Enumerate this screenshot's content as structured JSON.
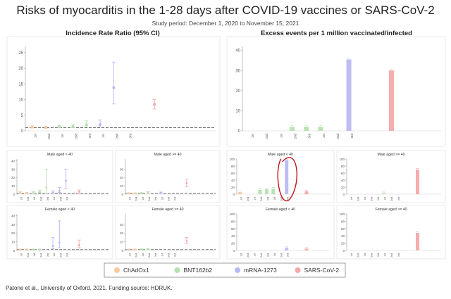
{
  "title": "Risks of myocarditis in the 1-28 days after COVID-19 vaccines or SARS-CoV-2",
  "subtitle": "Study period: December 1, 2020 to November 15, 2021",
  "caption": "Patone et al., University of Oxford, 2021. Funding source: HDRUK.",
  "colors": {
    "ChAdOx1": "#f8c9a0",
    "BNT162b2": "#b7e0b0",
    "mRNA-1273": "#b9b9f2",
    "SARS-CoV-2": "#f4a9a9",
    "annotation": "#c0141c"
  },
  "legend": [
    "ChAdOx1",
    "BNT162b2",
    "mRNA-1273",
    "SARS-CoV-2"
  ],
  "chart_data": [
    {
      "type": "scatter",
      "title": "Incidence Rate Ratio (95% CI)",
      "reference_line": 1,
      "ylim": [
        0,
        27
      ],
      "yticks": [
        0,
        5,
        10,
        15,
        20,
        25
      ],
      "categories": [
        "1st",
        "2nd",
        "1st",
        "2nd",
        "3rd",
        "1st",
        "2nd",
        "3rd",
        "",
        "",
        "",
        "",
        "",
        ""
      ],
      "series": [
        {
          "name": "ChAdOx1",
          "x": [
            0,
            1
          ],
          "y": [
            1.2,
            1.1
          ],
          "lo": [
            0.9,
            0.8
          ],
          "hi": [
            1.6,
            1.4
          ]
        },
        {
          "name": "BNT162b2",
          "x": [
            2,
            3,
            4
          ],
          "y": [
            1.3,
            1.4,
            1.9
          ],
          "lo": [
            1.0,
            1.0,
            1.2
          ],
          "hi": [
            1.7,
            2.0,
            3.2
          ]
        },
        {
          "name": "mRNA-1273",
          "x": [
            5,
            6
          ],
          "y": [
            2.0,
            13.8
          ],
          "lo": [
            1.2,
            8.6
          ],
          "hi": [
            3.5,
            22.0
          ]
        },
        {
          "name": "SARS-CoV-2",
          "x": [
            9
          ],
          "y": [
            8.5
          ],
          "lo": [
            7.0
          ],
          "hi": [
            10.0
          ]
        }
      ]
    },
    {
      "type": "bar",
      "title": "Excess events per 1 million vaccinated/infected",
      "ylim": [
        0,
        42
      ],
      "yticks": [
        0,
        10,
        20,
        30,
        40
      ],
      "categories": [
        "1st",
        "2nd",
        "1st",
        "2nd",
        "3rd",
        "1st",
        "2nd",
        "3rd",
        "",
        "",
        "",
        "",
        "",
        ""
      ],
      "series": [
        {
          "name": "BNT162b2",
          "x": [
            3,
            4,
            5
          ],
          "values": [
            2,
            2,
            2
          ]
        },
        {
          "name": "mRNA-1273",
          "x": [
            7
          ],
          "values": [
            35.5
          ]
        },
        {
          "name": "SARS-CoV-2",
          "x": [
            10
          ],
          "values": [
            30
          ]
        }
      ]
    },
    {
      "type": "scatter",
      "title": "Male aged < 40",
      "ylim": [
        0,
        42
      ],
      "yticks": [
        "0",
        "10",
        "20",
        "30",
        "40"
      ],
      "series": [
        {
          "name": "ChAdOx1",
          "x": [
            0,
            1
          ],
          "y": [
            2,
            1.5
          ],
          "lo": [
            1,
            1
          ],
          "hi": [
            3,
            2
          ]
        },
        {
          "name": "BNT162b2",
          "x": [
            2,
            3,
            4
          ],
          "y": [
            2,
            3,
            8
          ],
          "lo": [
            1,
            2,
            1
          ],
          "hi": [
            3,
            5,
            30
          ]
        },
        {
          "name": "mRNA-1273",
          "x": [
            5,
            6,
            7
          ],
          "y": [
            2,
            4,
            16
          ],
          "lo": [
            1,
            2,
            7
          ],
          "hi": [
            4,
            8,
            30
          ]
        },
        {
          "name": "SARS-CoV-2",
          "x": [
            9
          ],
          "y": [
            3
          ],
          "lo": [
            1
          ],
          "hi": [
            5
          ]
        }
      ]
    },
    {
      "type": "scatter",
      "title": "Male aged >= 40",
      "ylim": [
        0,
        42
      ],
      "yticks": [
        "0",
        "10",
        "20",
        "30"
      ],
      "series": [
        {
          "name": "ChAdOx1",
          "x": [
            0,
            1
          ],
          "y": [
            1.2,
            1
          ],
          "lo": [
            0.8,
            0.7
          ],
          "hi": [
            1.6,
            1.4
          ]
        },
        {
          "name": "BNT162b2",
          "x": [
            2,
            3
          ],
          "y": [
            1.3,
            2
          ],
          "lo": [
            0.9,
            1
          ],
          "hi": [
            1.7,
            3
          ]
        },
        {
          "name": "mRNA-1273",
          "x": [
            5
          ],
          "y": [
            1.5
          ],
          "lo": [
            1
          ],
          "hi": [
            2.5
          ]
        },
        {
          "name": "SARS-CoV-2",
          "x": [
            9
          ],
          "y": [
            13
          ],
          "lo": [
            9
          ],
          "hi": [
            18
          ]
        }
      ]
    },
    {
      "type": "bar",
      "title": "Male aged < 40",
      "ylim": [
        0,
        100
      ],
      "yticks": [
        "0",
        "20",
        "40",
        "60",
        "80",
        "100"
      ],
      "series": [
        {
          "name": "ChAdOx1",
          "x": [
            0
          ],
          "values": [
            6
          ]
        },
        {
          "name": "BNT162b2",
          "x": [
            3,
            4,
            5
          ],
          "values": [
            12,
            14,
            16
          ]
        },
        {
          "name": "mRNA-1273",
          "x": [
            7
          ],
          "values": [
            97
          ]
        },
        {
          "name": "SARS-CoV-2",
          "x": [
            10
          ],
          "values": [
            8
          ]
        }
      ],
      "annotation": "hand-drawn circle"
    },
    {
      "type": "bar",
      "title": "Male aged >= 40",
      "ylim": [
        0,
        100
      ],
      "yticks": [
        "0",
        "20",
        "40",
        "60",
        "80",
        "100"
      ],
      "series": [
        {
          "name": "BNT162b2",
          "x": [
            5
          ],
          "values": [
            3
          ]
        },
        {
          "name": "SARS-CoV-2",
          "x": [
            10
          ],
          "values": [
            70
          ]
        }
      ]
    },
    {
      "type": "scatter",
      "title": "Female aged < 40",
      "ylim": [
        0,
        42
      ],
      "yticks": [
        "0",
        "10",
        "20",
        "30",
        "40"
      ],
      "series": [
        {
          "name": "ChAdOx1",
          "x": [
            0,
            1
          ],
          "y": [
            1,
            1
          ],
          "lo": [
            0.7,
            0.7
          ],
          "hi": [
            1.5,
            1.5
          ]
        },
        {
          "name": "BNT162b2",
          "x": [
            2,
            3
          ],
          "y": [
            1,
            1
          ],
          "lo": [
            0.7,
            0.7
          ],
          "hi": [
            1.5,
            1.5
          ]
        },
        {
          "name": "mRNA-1273",
          "x": [
            5,
            6
          ],
          "y": [
            5,
            9
          ],
          "lo": [
            2,
            3
          ],
          "hi": [
            15,
            34
          ]
        },
        {
          "name": "SARS-CoV-2",
          "x": [
            9
          ],
          "y": [
            6
          ],
          "lo": [
            3
          ],
          "hi": [
            12
          ]
        }
      ]
    },
    {
      "type": "scatter",
      "title": "Female aged >= 40",
      "ylim": [
        0,
        42
      ],
      "yticks": [
        "0",
        "10",
        "20",
        "30"
      ],
      "series": [
        {
          "name": "ChAdOx1",
          "x": [
            0,
            1
          ],
          "y": [
            1,
            1
          ],
          "lo": [
            0.7,
            0.7
          ],
          "hi": [
            1.4,
            1.4
          ]
        },
        {
          "name": "BNT162b2",
          "x": [
            2,
            3
          ],
          "y": [
            1.2,
            1.5
          ],
          "lo": [
            0.9,
            1
          ],
          "hi": [
            1.6,
            2.2
          ]
        },
        {
          "name": "SARS-CoV-2",
          "x": [
            9
          ],
          "y": [
            11
          ],
          "lo": [
            8
          ],
          "hi": [
            15
          ]
        }
      ]
    },
    {
      "type": "bar",
      "title": "Female aged < 40",
      "ylim": [
        0,
        100
      ],
      "yticks": [
        "0",
        "20",
        "40",
        "60",
        "80",
        "100"
      ],
      "series": [
        {
          "name": "mRNA-1273",
          "x": [
            7
          ],
          "values": [
            7
          ]
        },
        {
          "name": "SARS-CoV-2",
          "x": [
            10
          ],
          "values": [
            5
          ]
        }
      ]
    },
    {
      "type": "bar",
      "title": "Female aged >= 40",
      "ylim": [
        0,
        100
      ],
      "yticks": [
        "0",
        "20",
        "40",
        "60",
        "80",
        "100"
      ],
      "series": [
        {
          "name": "SARS-CoV-2",
          "x": [
            10
          ],
          "values": [
            48
          ]
        }
      ]
    }
  ]
}
